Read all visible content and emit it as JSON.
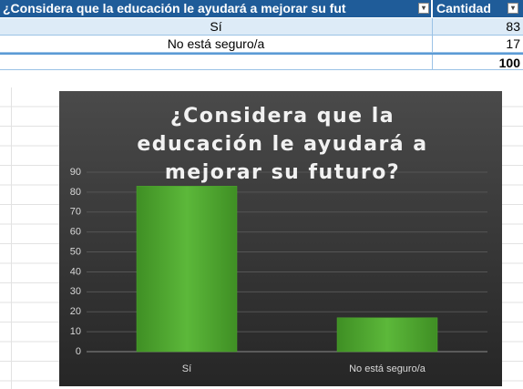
{
  "table": {
    "header": [
      "¿Considera que la educación le ayudará a mejorar su fut",
      "Cantidad"
    ],
    "rows": [
      [
        "Sí",
        83
      ],
      [
        "No está seguro/a",
        17
      ]
    ],
    "total": 100
  },
  "chart_data": {
    "type": "bar",
    "title": "¿Considera que la educación le ayudará a mejorar su futuro?",
    "categories": [
      "Sí",
      "No está seguro/a"
    ],
    "values": [
      83,
      17
    ],
    "color": "#4ea72e",
    "ylim": [
      0,
      90
    ],
    "yticks": [
      0,
      10,
      20,
      30,
      40,
      50,
      60,
      70,
      80,
      90
    ],
    "grid": true
  }
}
